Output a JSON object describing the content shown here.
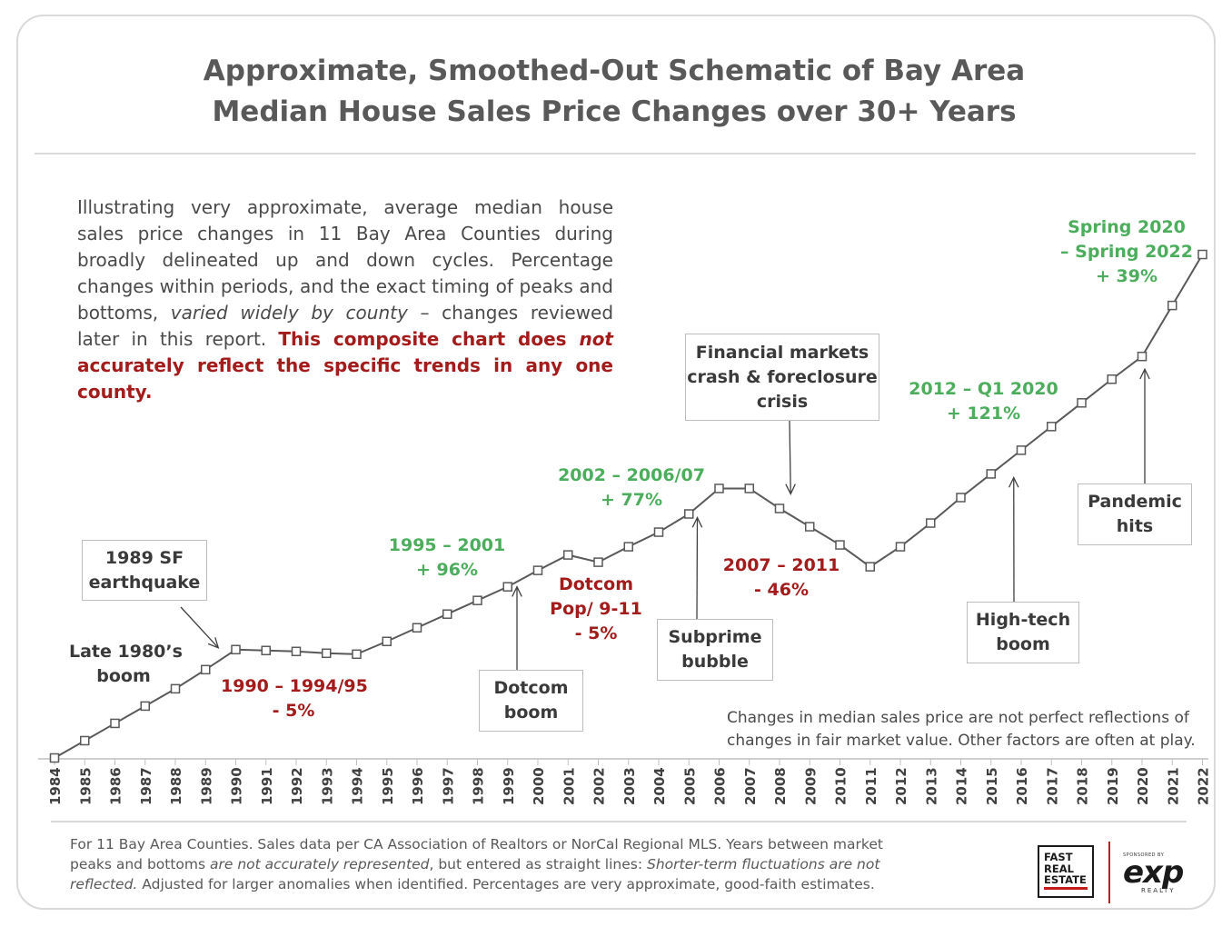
{
  "title_line1": "Approximate, Smoothed-Out Schematic of Bay Area",
  "title_line2": "Median House Sales Price Changes over 30+ Years",
  "intro": {
    "part1": "Illustrating very approximate, average median house sales price changes in 11 Bay Area Counties during broadly delineated up and down cycles. Percentage changes within periods, and the exact timing of peaks and bottoms, ",
    "italic": "varied widely by county",
    "part2": " – changes reviewed later in this report. ",
    "red1": "This composite chart does ",
    "red_italic": "not",
    "red2": " accurately reflect the specific trends in any one county."
  },
  "annotations": {
    "boom_1980s": [
      "Late 1980’s",
      "boom"
    ],
    "period_1990": [
      "1990 – 1994/95",
      "- 5%"
    ],
    "period_1995": [
      "1995 – 2001",
      "+ 96%"
    ],
    "dotcom_pop": [
      "Dotcom",
      "Pop/ 9-11",
      "- 5%"
    ],
    "period_2002": [
      "2002 – 2006/07",
      "+ 77%"
    ],
    "period_2007": [
      "2007 – 2011",
      "- 46%"
    ],
    "period_2012": [
      "2012 –  Q1 2020",
      "+ 121%"
    ],
    "period_2020": [
      "Spring 2020",
      "– Spring 2022",
      "+ 39%"
    ]
  },
  "boxes": {
    "earthquake": [
      "1989 SF",
      "earthquake"
    ],
    "dotcom_boom": [
      "Dotcom",
      "boom"
    ],
    "subprime": [
      "Subprime",
      "bubble"
    ],
    "financial_crash": [
      "Financial markets",
      "crash & foreclosure",
      "crisis"
    ],
    "hightech": [
      "High-tech",
      "boom"
    ],
    "pandemic": [
      "Pandemic",
      "hits"
    ]
  },
  "note": "Changes in median sales price are not perfect reflections of changes in fair market value. Other factors are often at play.",
  "footer": {
    "part1": "For 11 Bay Area Counties. Sales data per CA Association of Realtors or NorCal Regional MLS. Years between market peaks and bottoms ",
    "italic1": "are not accurately represented",
    "part2": ", but entered as straight lines: ",
    "italic2": "Shorter-term fluctuations are not reflected.",
    "part3": " Adjusted for larger anomalies when identified. Percentages are very approximate, good-faith estimates."
  },
  "logos": {
    "fre": [
      "FAST",
      "REAL",
      "ESTATE"
    ],
    "exp_small": "SPONSORED BY",
    "exp_big": "exp",
    "exp_realty": "REALTY"
  },
  "colors": {
    "up": "#4cae5c",
    "down": "#a31b1b",
    "line": "#595959"
  },
  "chart_data": {
    "type": "line",
    "x": [
      1984,
      1985,
      1986,
      1987,
      1988,
      1989,
      1990,
      1991,
      1992,
      1993,
      1994,
      1995,
      1996,
      1997,
      1998,
      1999,
      2000,
      2001,
      2002,
      2003,
      2004,
      2005,
      2006,
      2007,
      2008,
      2009,
      2010,
      2011,
      2012,
      2013,
      2014,
      2015,
      2016,
      2017,
      2018,
      2019,
      2020,
      2021,
      2022
    ],
    "y": [
      0,
      19,
      38,
      57,
      76,
      97,
      119,
      118,
      117,
      115,
      114,
      128,
      143,
      158,
      173,
      188,
      206,
      223,
      215,
      232,
      248,
      268,
      296,
      296,
      274,
      254,
      234,
      210,
      232,
      258,
      286,
      312,
      338,
      364,
      390,
      416,
      441,
      497,
      553
    ],
    "tick_labels": [
      "1984",
      "1985",
      "1986",
      "1987",
      "1988",
      "1989",
      "1990",
      "1991",
      "1992",
      "1993",
      "1994",
      "1995",
      "1996",
      "1997",
      "1998",
      "1999",
      "2000",
      "2001",
      "2002",
      "2003",
      "2004",
      "2005",
      "2006",
      "2007",
      "2008",
      "2009",
      "2010",
      "2011",
      "2012",
      "2013",
      "2014",
      "2015",
      "2016",
      "2017",
      "2018",
      "2019",
      "2020",
      "2021",
      "2022"
    ],
    "ylim": [
      0,
      553
    ],
    "grid": false,
    "legend": "none"
  }
}
